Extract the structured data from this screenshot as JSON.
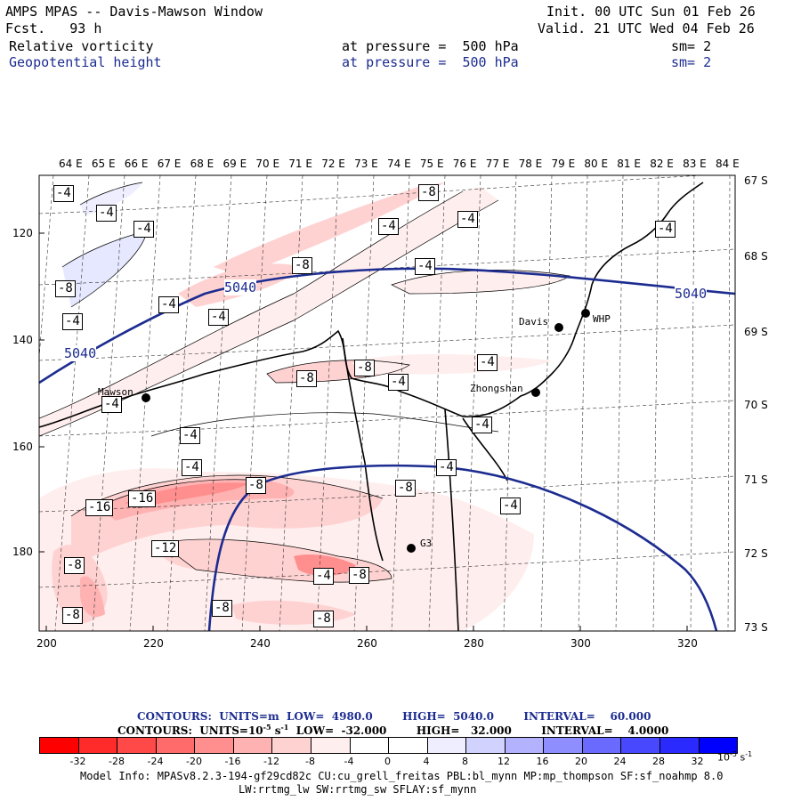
{
  "header": {
    "title": "AMPS MPAS -- Davis-Mawson Window",
    "init": "Init. 00 UTC Sun 01 Feb 26",
    "fcst": "Fcst.   93 h",
    "valid": "Valid. 21 UTC Wed 04 Feb 26",
    "field1": "Relative vorticity",
    "field1_level": "at pressure =  500 hPa",
    "field1_sm": "sm= 2",
    "field2": "Geopotential height",
    "field2_level": "at pressure =  500 hPa",
    "field2_sm": "sm= 2"
  },
  "map": {
    "lon_labels": [
      "64 E",
      "65 E",
      "66 E",
      "67 E",
      "68 E",
      "69 E",
      "70 E",
      "71 E",
      "72 E",
      "73 E",
      "74 E",
      "75 E",
      "76 E",
      "77 E",
      "78 E",
      "79 E",
      "80 E",
      "81 E",
      "82 E",
      "83 E",
      "84 E"
    ],
    "lat_labels": [
      "67 S",
      "68 S",
      "69 S",
      "70 S",
      "71 S",
      "72 S",
      "73 S"
    ],
    "y_ticks": [
      "120",
      "140",
      "160",
      "180"
    ],
    "x_ticks": [
      "200",
      "220",
      "240",
      "260",
      "280",
      "300",
      "320"
    ],
    "stations": [
      "Davis",
      "WHP",
      "Mawson",
      "Zhongshan",
      "G3"
    ],
    "height_contour_label": "5040",
    "vorticity_labels": [
      "-4",
      "-4",
      "-4",
      "-4",
      "-8",
      "-4",
      "-4",
      "-4",
      "-8",
      "-8",
      "-4",
      "-4",
      "-4",
      "-4",
      "-4",
      "-8",
      "-8",
      "-4",
      "-4",
      "-4",
      "-4",
      "-4",
      "-8",
      "-4",
      "-8",
      "-16",
      "-16",
      "-12",
      "-8",
      "-4",
      "-8",
      "-8",
      "-8",
      "-8",
      "-4",
      "-8",
      "-4",
      "-4"
    ]
  },
  "info": {
    "line1": "CONTOURS:  UNITS=m  LOW=  4980.0        HIGH=  5040.0        INTERVAL=    60.000",
    "line2_prefix": "CONTOURS:  UNITS=10",
    "line2_exp": "-5",
    "line2_mid": " s",
    "line2_exp2": "-1",
    "line2_rest": "  LOW=  -32.000        HIGH=   32.000        INTERVAL=    4.0000"
  },
  "colorbar": {
    "colors": [
      "#ff0000",
      "#ff2a2a",
      "#ff4848",
      "#ff6a6a",
      "#ff8e8e",
      "#ffb2b2",
      "#ffd2d2",
      "#ffeeee",
      "#ffffff",
      "#ffffff",
      "#eeeeff",
      "#d2d2ff",
      "#b2b2ff",
      "#8e8eff",
      "#6a6aff",
      "#4848ff",
      "#2a2aff",
      "#0000ff"
    ],
    "ticks": [
      "-32",
      "-28",
      "-24",
      "-20",
      "-16",
      "-12",
      "-8",
      "-4",
      "0",
      "4",
      "8",
      "12",
      "16",
      "20",
      "24",
      "28",
      "32"
    ],
    "unit": "10",
    "unit_exp": "-5",
    "unit_s": " s",
    "unit_s_exp": "-1"
  },
  "model_info": {
    "line1": "Model Info: MPASv8.2.3-194-gf29cd82c CU:cu_grell_freitas PBL:bl_mynn MP:mp_thompson SF:sf_noahmp 8.0",
    "line2": "LW:rrtmg_lw SW:rrtmg_sw SFLAY:sf_mynn"
  }
}
